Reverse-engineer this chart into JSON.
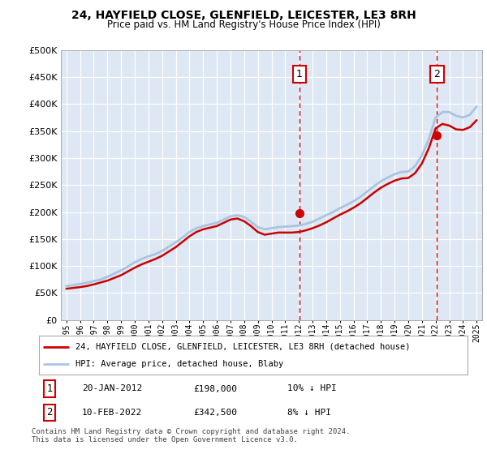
{
  "title": "24, HAYFIELD CLOSE, GLENFIELD, LEICESTER, LE3 8RH",
  "subtitle": "Price paid vs. HM Land Registry's House Price Index (HPI)",
  "legend_line1": "24, HAYFIELD CLOSE, GLENFIELD, LEICESTER, LE3 8RH (detached house)",
  "legend_line2": "HPI: Average price, detached house, Blaby",
  "footnote": "Contains HM Land Registry data © Crown copyright and database right 2024.\nThis data is licensed under the Open Government Licence v3.0.",
  "annotation1_date": "20-JAN-2012",
  "annotation1_price": "£198,000",
  "annotation1_hpi": "10% ↓ HPI",
  "annotation2_date": "10-FEB-2022",
  "annotation2_price": "£342,500",
  "annotation2_hpi": "8% ↓ HPI",
  "hpi_color": "#aac4e0",
  "price_color": "#cc0000",
  "background_color": "#dde8f4",
  "ylim": [
    0,
    500000
  ],
  "sale1_x": 2012.05,
  "sale1_y": 198000,
  "sale2_x": 2022.1,
  "sale2_y": 342500,
  "hpi_x": [
    1995,
    1995.5,
    1996,
    1996.5,
    1997,
    1997.5,
    1998,
    1998.5,
    1999,
    1999.5,
    2000,
    2000.5,
    2001,
    2001.5,
    2002,
    2002.5,
    2003,
    2003.5,
    2004,
    2004.5,
    2005,
    2005.5,
    2006,
    2006.5,
    2007,
    2007.5,
    2008,
    2008.5,
    2009,
    2009.5,
    2010,
    2010.5,
    2011,
    2011.5,
    2012,
    2012.5,
    2013,
    2013.5,
    2014,
    2014.5,
    2015,
    2015.5,
    2016,
    2016.5,
    2017,
    2017.5,
    2018,
    2018.5,
    2019,
    2019.5,
    2020,
    2020.5,
    2021,
    2021.5,
    2022,
    2022.5,
    2023,
    2023.5,
    2024,
    2024.5,
    2025
  ],
  "hpi_y": [
    63000,
    64500,
    67000,
    69000,
    72000,
    75000,
    80000,
    86000,
    92000,
    99000,
    107000,
    113000,
    118000,
    122000,
    128000,
    136000,
    144000,
    153000,
    163000,
    170000,
    174000,
    177000,
    180000,
    186000,
    192000,
    194000,
    191000,
    182000,
    172000,
    168000,
    170000,
    172000,
    173000,
    174000,
    175000,
    178000,
    182000,
    188000,
    194000,
    200000,
    207000,
    213000,
    220000,
    228000,
    238000,
    248000,
    257000,
    264000,
    270000,
    274000,
    275000,
    285000,
    305000,
    335000,
    375000,
    385000,
    385000,
    378000,
    375000,
    380000,
    395000
  ],
  "price_x": [
    1995,
    1995.5,
    1996,
    1996.5,
    1997,
    1997.5,
    1998,
    1998.5,
    1999,
    1999.5,
    2000,
    2000.5,
    2001,
    2001.5,
    2002,
    2002.5,
    2003,
    2003.5,
    2004,
    2004.5,
    2005,
    2005.5,
    2006,
    2006.5,
    2007,
    2007.5,
    2008,
    2008.5,
    2009,
    2009.5,
    2010,
    2010.5,
    2011,
    2011.5,
    2012,
    2012.5,
    2013,
    2013.5,
    2014,
    2014.5,
    2015,
    2015.5,
    2016,
    2016.5,
    2017,
    2017.5,
    2018,
    2018.5,
    2019,
    2019.5,
    2020,
    2020.5,
    2021,
    2021.5,
    2022,
    2022.5,
    2023,
    2023.5,
    2024,
    2024.5,
    2025
  ],
  "price_y": [
    58000,
    59500,
    61000,
    63000,
    66000,
    69500,
    73000,
    78000,
    83000,
    90000,
    97000,
    103000,
    108000,
    113000,
    119000,
    127000,
    135000,
    145000,
    155000,
    163000,
    168000,
    171000,
    174000,
    180000,
    186000,
    188000,
    183000,
    174000,
    163000,
    158000,
    160000,
    162000,
    162000,
    162000,
    163000,
    166000,
    170000,
    175000,
    181000,
    188000,
    195000,
    201000,
    208000,
    216000,
    226000,
    236000,
    245000,
    252000,
    258000,
    262000,
    263000,
    272000,
    290000,
    318000,
    355000,
    363000,
    360000,
    353000,
    352000,
    357000,
    370000
  ],
  "xlim_left": 1994.6,
  "xlim_right": 2025.4,
  "xtick_years": [
    1995,
    1996,
    1997,
    1998,
    1999,
    2000,
    2001,
    2002,
    2003,
    2004,
    2005,
    2006,
    2007,
    2008,
    2009,
    2010,
    2011,
    2012,
    2013,
    2014,
    2015,
    2016,
    2017,
    2018,
    2019,
    2020,
    2021,
    2022,
    2023,
    2024,
    2025
  ]
}
